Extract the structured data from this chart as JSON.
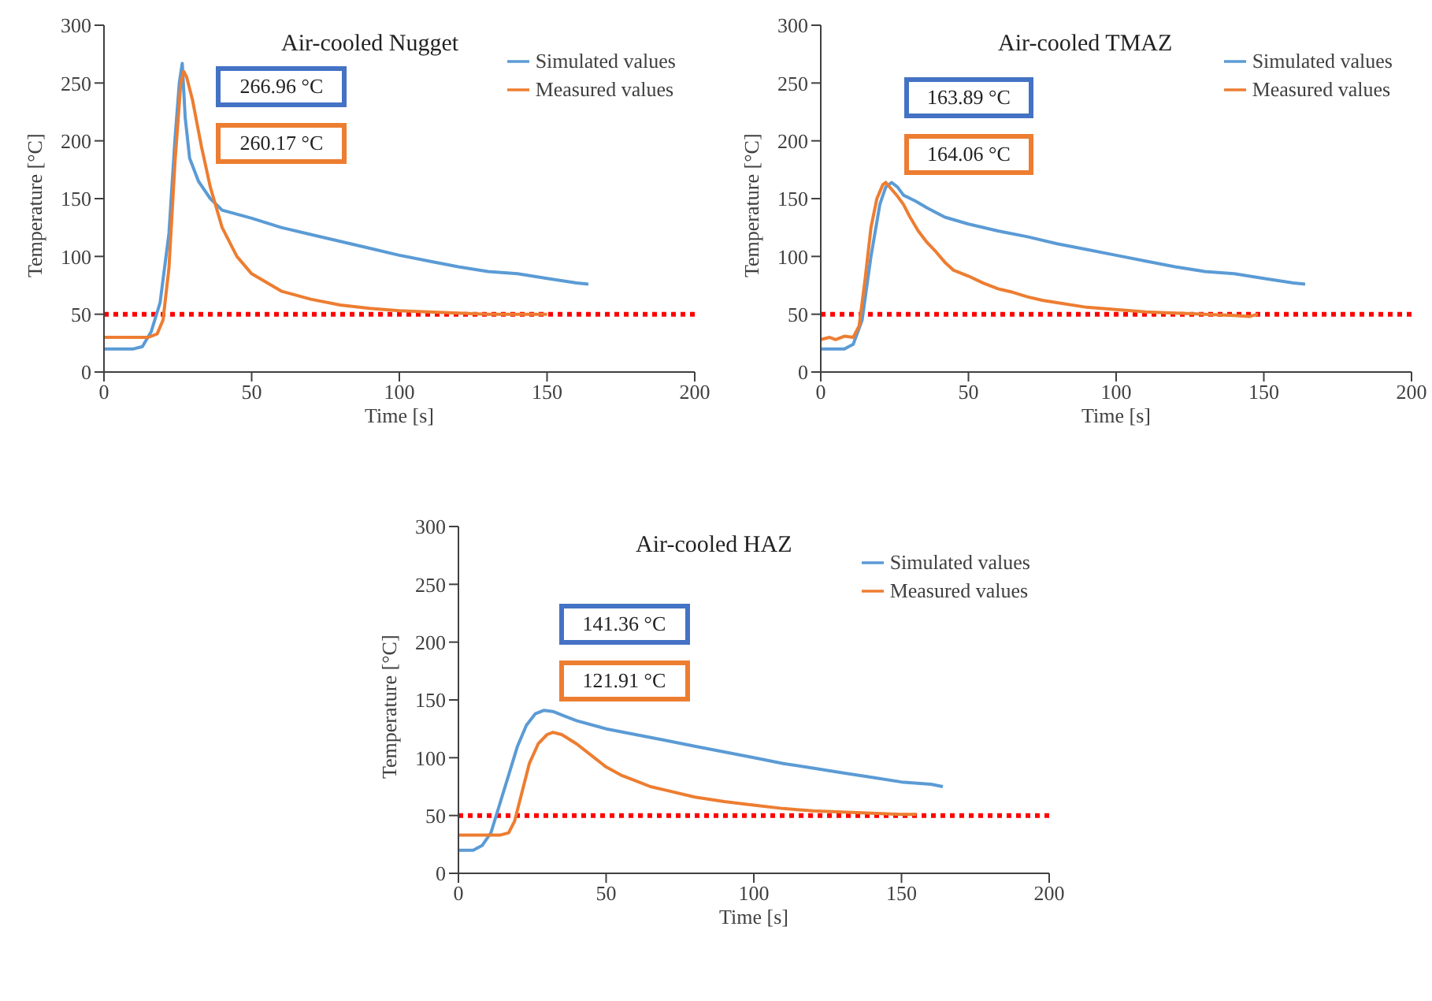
{
  "chart_data": [
    {
      "type": "line",
      "title": "Air-cooled Nugget",
      "xlabel": "Time [s]",
      "ylabel": "Temperature [°C]",
      "xlim": [
        0,
        200
      ],
      "xticks": [
        0,
        50,
        100,
        150,
        200
      ],
      "ylim": [
        0,
        300
      ],
      "yticks": [
        0,
        50,
        100,
        150,
        200,
        250,
        300
      ],
      "legend": "top right",
      "annotations": [
        "266.96 °C",
        "260.17 °C"
      ],
      "ref_lines": [
        {
          "axis": "y",
          "value": 50,
          "color": "#ff0000",
          "line_style": "dotted"
        }
      ],
      "series": [
        {
          "name": "Simulated values",
          "color": "#5b9bd5",
          "x": [
            0,
            10,
            13,
            16,
            19,
            22,
            24,
            25.5,
            26.5,
            27.5,
            29,
            32,
            36,
            40,
            50,
            60,
            70,
            80,
            90,
            100,
            110,
            120,
            130,
            140,
            150,
            160,
            164
          ],
          "values": [
            20,
            20,
            22,
            35,
            60,
            120,
            200,
            250,
            267,
            220,
            185,
            165,
            150,
            140,
            133,
            125,
            119,
            113,
            107,
            101,
            96,
            91,
            87,
            85,
            81,
            77,
            76
          ]
        },
        {
          "name": "Measured values",
          "color": "#ed7d31",
          "x": [
            0,
            15,
            18,
            20,
            22,
            24,
            26,
            27,
            28,
            30,
            33,
            36,
            40,
            45,
            50,
            60,
            70,
            80,
            90,
            100,
            110,
            120,
            130,
            140,
            150
          ],
          "values": [
            30,
            30,
            33,
            45,
            90,
            180,
            250,
            260,
            255,
            235,
            195,
            160,
            125,
            100,
            85,
            70,
            63,
            58,
            55,
            53,
            52,
            51,
            50,
            50,
            50
          ]
        }
      ]
    },
    {
      "type": "line",
      "title": "Air-cooled TMAZ",
      "xlabel": "Time [s]",
      "ylabel": "Temperature [°C]",
      "xlim": [
        0,
        200
      ],
      "xticks": [
        0,
        50,
        100,
        150,
        200
      ],
      "ylim": [
        0,
        300
      ],
      "yticks": [
        0,
        50,
        100,
        150,
        200,
        250,
        300
      ],
      "legend": "top right",
      "annotations": [
        "163.89 °C",
        "164.06 °C"
      ],
      "ref_lines": [
        {
          "axis": "y",
          "value": 50,
          "color": "#ff0000",
          "line_style": "dotted"
        }
      ],
      "series": [
        {
          "name": "Simulated values",
          "color": "#5b9bd5",
          "x": [
            0,
            8,
            11,
            14,
            17,
            20,
            22,
            24,
            26,
            28,
            32,
            36,
            42,
            50,
            60,
            70,
            80,
            90,
            100,
            110,
            120,
            130,
            140,
            150,
            160,
            164
          ],
          "values": [
            20,
            20,
            24,
            45,
            100,
            145,
            160,
            164,
            160,
            153,
            148,
            142,
            134,
            128,
            122,
            117,
            111,
            106,
            101,
            96,
            91,
            87,
            85,
            81,
            77,
            76
          ]
        },
        {
          "name": "Measured values",
          "color": "#ed7d31",
          "x": [
            0,
            3,
            5,
            8,
            11,
            13,
            15,
            17,
            19,
            21,
            22,
            24,
            26,
            28,
            30,
            33,
            36,
            39,
            42,
            45,
            50,
            55,
            60,
            65,
            70,
            75,
            80,
            90,
            100,
            110,
            120,
            130,
            140,
            145,
            148
          ],
          "values": [
            28,
            30,
            28,
            31,
            30,
            40,
            80,
            125,
            150,
            162,
            164,
            158,
            152,
            145,
            135,
            122,
            112,
            104,
            95,
            88,
            83,
            77,
            72,
            69,
            65,
            62,
            60,
            56,
            54,
            52,
            51,
            50,
            49,
            48,
            50
          ]
        }
      ]
    },
    {
      "type": "line",
      "title": "Air-cooled HAZ",
      "xlabel": "Time [s]",
      "ylabel": "Temperature [°C]",
      "xlim": [
        0,
        200
      ],
      "xticks": [
        0,
        50,
        100,
        150,
        200
      ],
      "ylim": [
        0,
        300
      ],
      "yticks": [
        0,
        50,
        100,
        150,
        200,
        250,
        300
      ],
      "legend": "top right",
      "annotations": [
        "141.36 °C",
        "121.91 °C"
      ],
      "ref_lines": [
        {
          "axis": "y",
          "value": 50,
          "color": "#ff0000",
          "line_style": "dotted"
        }
      ],
      "series": [
        {
          "name": "Simulated values",
          "color": "#5b9bd5",
          "x": [
            0,
            5,
            8,
            11,
            14,
            17,
            20,
            23,
            26,
            29,
            32,
            36,
            40,
            50,
            60,
            70,
            80,
            90,
            100,
            110,
            120,
            130,
            140,
            150,
            160,
            164
          ],
          "values": [
            20,
            20,
            24,
            35,
            60,
            85,
            110,
            128,
            138,
            141,
            140,
            136,
            132,
            125,
            120,
            115,
            110,
            105,
            100,
            95,
            91,
            87,
            83,
            79,
            77,
            75
          ]
        },
        {
          "name": "Measured values",
          "color": "#ed7d31",
          "x": [
            0,
            14,
            17,
            19,
            21,
            24,
            27,
            30,
            32,
            35,
            40,
            45,
            50,
            55,
            60,
            65,
            70,
            80,
            90,
            100,
            110,
            120,
            130,
            140,
            150,
            155
          ],
          "values": [
            33,
            33,
            35,
            45,
            65,
            95,
            112,
            120,
            122,
            120,
            112,
            102,
            92,
            85,
            80,
            75,
            72,
            66,
            62,
            59,
            56,
            54,
            53,
            52,
            51,
            51
          ]
        }
      ]
    }
  ]
}
